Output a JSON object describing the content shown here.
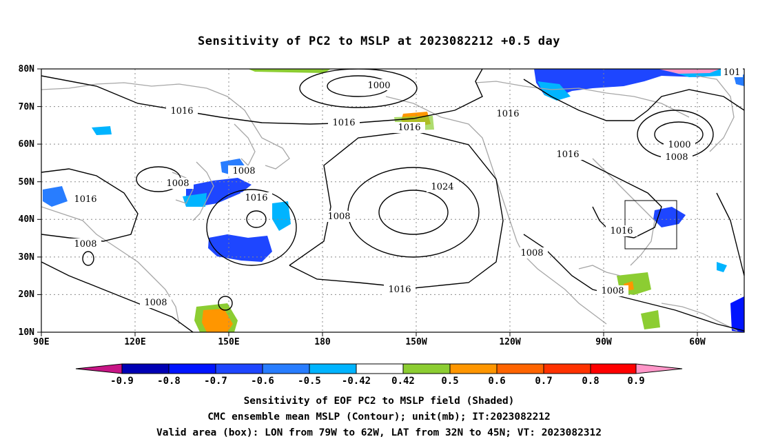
{
  "title": "Sensitivity of PC2 to MSLP at 2023082212 +0.5 day",
  "caption": {
    "line1": "Sensitivity of EOF PC2 to MSLP field (Shaded)",
    "line2": "CMC ensemble mean MSLP (Contour); unit(mb); IT:2023082212",
    "line3": "Valid area (box): LON from 79W to 62W, LAT from 32N to 45N; VT: 2023082312"
  },
  "axes": {
    "lat_labels": [
      "80N",
      "70N",
      "60N",
      "50N",
      "40N",
      "30N",
      "20N",
      "10N"
    ],
    "lon_labels": [
      "90E",
      "120E",
      "150E",
      "180",
      "150W",
      "120W",
      "90W",
      "60W"
    ]
  },
  "contour_labels": {
    "c1000a": "1000",
    "c1000b": "1000",
    "c1008a": "1008",
    "c1008b": "1008",
    "c1008c": "1008",
    "c1008d": "1008",
    "c1008e": "1008",
    "c1008f": "1008",
    "c1008g": "1008",
    "c1008h": "1008",
    "c1016a": "1016",
    "c1016b": "1016",
    "c1016c": "1016",
    "c1016d": "1016",
    "c1016e": "1016",
    "c1016f": "1016",
    "c1016g": "1016",
    "c1016h": "1016",
    "c1016i": "1016",
    "c1024": "1024",
    "c101": "101"
  },
  "valid_box": {
    "lon_from": "79W",
    "lon_to": "62W",
    "lat_from": "32N",
    "lat_to": "45N"
  },
  "colorbar": {
    "ticks": [
      "-0.9",
      "-0.8",
      "-0.7",
      "-0.6",
      "-0.5",
      "-0.42",
      "0.42",
      "0.5",
      "0.6",
      "0.7",
      "0.8",
      "0.9"
    ],
    "colors": [
      "#c71585",
      "#0000b4",
      "#0014ff",
      "#1e46ff",
      "#287dff",
      "#00b4ff",
      "#ffffff",
      "#8ccd32",
      "#ff9600",
      "#ff6400",
      "#ff3200",
      "#ff0000",
      "#ff96c8"
    ]
  }
}
